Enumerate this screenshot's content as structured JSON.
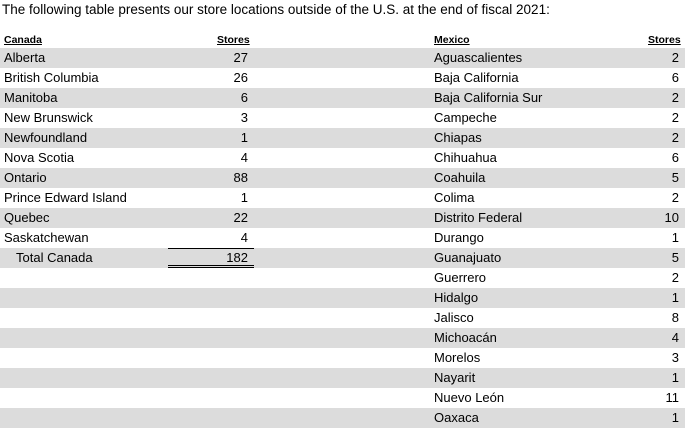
{
  "intro": "The following table presents our store locations outside of the U.S. at the end of fiscal 2021:",
  "canada": {
    "header": "Canada",
    "stores_header": "Stores",
    "rows": [
      {
        "name": "Alberta",
        "stores": "27"
      },
      {
        "name": "British Columbia",
        "stores": "26"
      },
      {
        "name": "Manitoba",
        "stores": "6"
      },
      {
        "name": "New Brunswick",
        "stores": "3"
      },
      {
        "name": "Newfoundland",
        "stores": "1"
      },
      {
        "name": "Nova Scotia",
        "stores": "4"
      },
      {
        "name": "Ontario",
        "stores": "88"
      },
      {
        "name": "Prince Edward Island",
        "stores": "1"
      },
      {
        "name": "Quebec",
        "stores": "22"
      },
      {
        "name": "Saskatchewan",
        "stores": "4"
      }
    ],
    "total": {
      "name": "Total Canada",
      "stores": "182"
    }
  },
  "mexico": {
    "header": "Mexico",
    "stores_header": "Stores",
    "rows": [
      {
        "name": "Aguascalientes",
        "stores": "2"
      },
      {
        "name": "Baja California",
        "stores": "6"
      },
      {
        "name": "Baja California Sur",
        "stores": "2"
      },
      {
        "name": "Campeche",
        "stores": "2"
      },
      {
        "name": "Chiapas",
        "stores": "2"
      },
      {
        "name": "Chihuahua",
        "stores": "6"
      },
      {
        "name": "Coahuila",
        "stores": "5"
      },
      {
        "name": "Colima",
        "stores": "2"
      },
      {
        "name": "Distrito Federal",
        "stores": "10"
      },
      {
        "name": "Durango",
        "stores": "1"
      },
      {
        "name": "Guanajuato",
        "stores": "5"
      },
      {
        "name": "Guerrero",
        "stores": "2"
      },
      {
        "name": "Hidalgo",
        "stores": "1"
      },
      {
        "name": "Jalisco",
        "stores": "8"
      },
      {
        "name": "Michoacán",
        "stores": "4"
      },
      {
        "name": "Morelos",
        "stores": "3"
      },
      {
        "name": "Nayarit",
        "stores": "1"
      },
      {
        "name": "Nuevo León",
        "stores": "11"
      },
      {
        "name": "Oaxaca",
        "stores": "1"
      }
    ]
  },
  "colors": {
    "row_shade": "#dcdcdc"
  }
}
